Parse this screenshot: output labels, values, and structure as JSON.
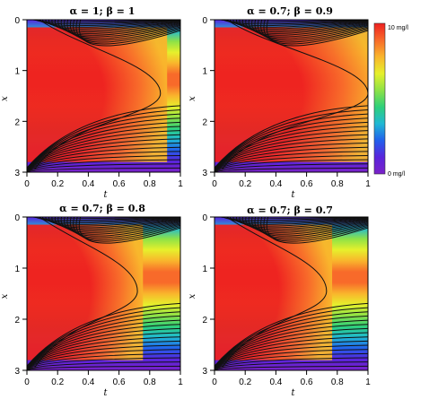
{
  "chart_data": [
    {
      "type": "heatmap",
      "title": "α = 1; β = 1",
      "alpha": 1,
      "beta": 1,
      "xlabel": "t",
      "ylabel": "x",
      "xlim": [
        0,
        1
      ],
      "ylim": [
        3,
        0
      ],
      "xticks": [
        "0",
        "0.2",
        "0.4",
        "0.6",
        "0.8",
        "1"
      ],
      "yticks": [
        "0",
        "1",
        "2",
        "3"
      ],
      "core_reach_t": 0.87,
      "contour_count": 16
    },
    {
      "type": "heatmap",
      "title": "α = 0.7; β = 0.9",
      "alpha": 0.7,
      "beta": 0.9,
      "xlabel": "t",
      "ylabel": "x",
      "xlim": [
        0,
        1
      ],
      "ylim": [
        3,
        0
      ],
      "xticks": [
        "0",
        "0.2",
        "0.4",
        "0.6",
        "0.8",
        "1"
      ],
      "yticks": [
        "0",
        "1",
        "2",
        "3"
      ],
      "core_reach_t": 1.0,
      "contour_count": 16
    },
    {
      "type": "heatmap",
      "title": "α = 0.7; β = 0.8",
      "alpha": 0.7,
      "beta": 0.8,
      "xlabel": "t",
      "ylabel": "x",
      "xlim": [
        0,
        1
      ],
      "ylim": [
        3,
        0
      ],
      "xticks": [
        "0",
        "0.2",
        "0.4",
        "0.6",
        "0.8",
        "1"
      ],
      "yticks": [
        "0",
        "1",
        "2",
        "3"
      ],
      "core_reach_t": 0.72,
      "contour_count": 16
    },
    {
      "type": "heatmap",
      "title": "α = 0.7; β = 0.7",
      "alpha": 0.7,
      "beta": 0.7,
      "xlabel": "t",
      "ylabel": "x",
      "xlim": [
        0,
        1
      ],
      "ylim": [
        3,
        0
      ],
      "xticks": [
        "0",
        "0.2",
        "0.4",
        "0.6",
        "0.8",
        "1"
      ],
      "yticks": [
        "0",
        "1",
        "2",
        "3"
      ],
      "core_reach_t": 0.73,
      "contour_count": 16
    }
  ],
  "colorbar": {
    "max_label": "10 mg/l",
    "min_label": "0 mg/l",
    "range": [
      0,
      10
    ],
    "colors": [
      "#ee2020",
      "#f86a2a",
      "#f9b52c",
      "#e6f02c",
      "#8ee246",
      "#2ed07a",
      "#20b8d4",
      "#2260ec",
      "#5a24dc",
      "#7a22c8"
    ]
  }
}
